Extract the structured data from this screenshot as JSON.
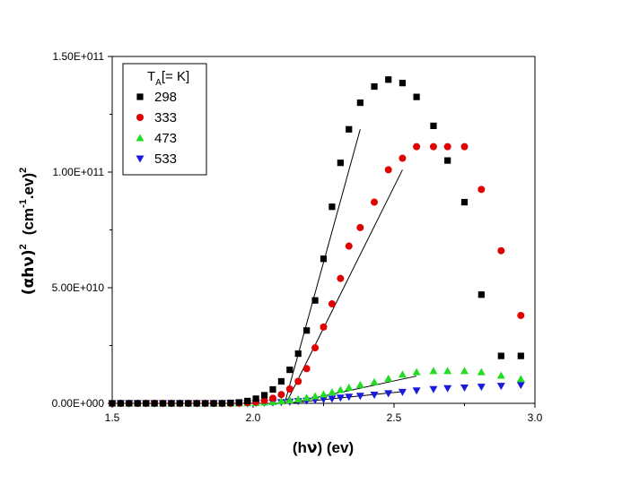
{
  "chart_data": {
    "type": "scatter",
    "title": "",
    "xlabel_parts": {
      "open": "(h",
      "nu": "ν",
      "close": ") (ev)"
    },
    "ylabel_parts": {
      "alpha": "(αhν)",
      "sup2": "2",
      "unit": "(cm",
      "supm1": "-1",
      "unit2": ".ev)",
      "sup2b": "2"
    },
    "xlim": [
      1.5,
      3.0
    ],
    "ylim": [
      0,
      150000000000.0
    ],
    "xticks": [
      1.5,
      2.0,
      2.5,
      3.0
    ],
    "xtick_labels": [
      "1.5",
      "2.0",
      "2.5",
      "3.0"
    ],
    "yticks": [
      0,
      50000000000.0,
      100000000000.0,
      150000000000.0
    ],
    "ytick_labels": [
      "0.00E+000",
      "5.00E+010",
      "1.00E+011",
      "1.50E+011"
    ],
    "legend": {
      "title_T": "T",
      "title_A": "A",
      "title_rest": "[= K]",
      "position": "top-left"
    },
    "series": [
      {
        "name": "298",
        "marker": "square",
        "color": "#000000",
        "x": [
          1.5,
          1.53,
          1.56,
          1.59,
          1.62,
          1.65,
          1.68,
          1.71,
          1.74,
          1.77,
          1.8,
          1.83,
          1.86,
          1.89,
          1.92,
          1.95,
          1.98,
          2.01,
          2.04,
          2.07,
          2.1,
          2.13,
          2.16,
          2.19,
          2.22,
          2.25,
          2.28,
          2.31,
          2.34,
          2.38,
          2.43,
          2.48,
          2.53,
          2.58,
          2.64,
          2.69,
          2.75,
          2.81,
          2.88,
          2.95
        ],
        "y": [
          0,
          0,
          0,
          0,
          0,
          0,
          0,
          0,
          0,
          0,
          0,
          0,
          0,
          0,
          200000000.0,
          400000000.0,
          1000000000.0,
          2000000000.0,
          3500000000.0,
          6000000000.0,
          9500000000.0,
          14500000000.0,
          21500000000.0,
          31500000000.0,
          44500000000.0,
          62500000000.0,
          85000000000.0,
          104000000000.0,
          118500000000.0,
          130000000000.0,
          137000000000.0,
          140000000000.0,
          138500000000.0,
          132500000000.0,
          120000000000.0,
          105000000000.0,
          87000000000.0,
          47000000000.0,
          20500000000.0,
          20500000000.0
        ]
      },
      {
        "name": "333",
        "marker": "circle",
        "color": "#e00000",
        "x": [
          1.5,
          1.53,
          1.56,
          1.59,
          1.62,
          1.65,
          1.68,
          1.71,
          1.74,
          1.77,
          1.8,
          1.83,
          1.86,
          1.89,
          1.92,
          1.95,
          1.98,
          2.01,
          2.04,
          2.07,
          2.1,
          2.13,
          2.16,
          2.19,
          2.22,
          2.25,
          2.28,
          2.31,
          2.34,
          2.38,
          2.43,
          2.48,
          2.53,
          2.58,
          2.64,
          2.69,
          2.75,
          2.81,
          2.88,
          2.95
        ],
        "y": [
          0,
          0,
          0,
          0,
          0,
          0,
          0,
          0,
          0,
          0,
          0,
          0,
          0,
          0,
          0,
          100000000.0,
          300000000.0,
          600000000.0,
          1200000000.0,
          2200000000.0,
          3800000000.0,
          6200000000.0,
          9500000000.0,
          15000000000.0,
          24000000000.0,
          33000000000.0,
          43000000000.0,
          54000000000.0,
          68000000000.0,
          76000000000.0,
          87000000000.0,
          101000000000.0,
          106000000000.0,
          111000000000.0,
          111000000000.0,
          111000000000.0,
          111000000000.0,
          92500000000.0,
          66000000000.0,
          38000000000.0
        ]
      },
      {
        "name": "473",
        "marker": "triangle-up",
        "color": "#22dd22",
        "x": [
          1.5,
          1.53,
          1.56,
          1.59,
          1.62,
          1.65,
          1.68,
          1.71,
          1.74,
          1.77,
          1.8,
          1.83,
          1.86,
          1.89,
          1.92,
          1.95,
          1.98,
          2.01,
          2.04,
          2.07,
          2.1,
          2.13,
          2.16,
          2.19,
          2.22,
          2.25,
          2.28,
          2.31,
          2.34,
          2.38,
          2.43,
          2.48,
          2.53,
          2.58,
          2.64,
          2.69,
          2.75,
          2.81,
          2.88,
          2.95
        ],
        "y": [
          0,
          0,
          0,
          0,
          0,
          0,
          0,
          0,
          0,
          0,
          0,
          0,
          0,
          0,
          0,
          0,
          100000000.0,
          200000000.0,
          400000000.0,
          600000000.0,
          900000000.0,
          1300000000.0,
          1800000000.0,
          2400000000.0,
          3100000000.0,
          3900000000.0,
          4800000000.0,
          5800000000.0,
          6800000000.0,
          8000000000.0,
          9200000000.0,
          10700000000.0,
          12500000000.0,
          13500000000.0,
          14000000000.0,
          14000000000.0,
          14000000000.0,
          13500000000.0,
          12000000000.0,
          10500000000.0
        ]
      },
      {
        "name": "533",
        "marker": "triangle-down",
        "color": "#1a1adc",
        "x": [
          1.5,
          1.53,
          1.56,
          1.59,
          1.62,
          1.65,
          1.68,
          1.71,
          1.74,
          1.77,
          1.8,
          1.83,
          1.86,
          1.89,
          1.92,
          1.95,
          1.98,
          2.01,
          2.04,
          2.07,
          2.1,
          2.13,
          2.16,
          2.19,
          2.22,
          2.25,
          2.28,
          2.31,
          2.34,
          2.38,
          2.43,
          2.48,
          2.53,
          2.58,
          2.64,
          2.69,
          2.75,
          2.81,
          2.88,
          2.95
        ],
        "y": [
          0,
          0,
          0,
          0,
          0,
          0,
          0,
          0,
          0,
          0,
          0,
          0,
          0,
          0,
          0,
          0,
          0,
          100000000.0,
          200000000.0,
          300000000.0,
          500000000.0,
          700000000.0,
          900000000.0,
          1100000000.0,
          1400000000.0,
          1700000000.0,
          2000000000.0,
          2400000000.0,
          2800000000.0,
          3200000000.0,
          3700000000.0,
          4300000000.0,
          4900000000.0,
          5500000000.0,
          6100000000.0,
          6500000000.0,
          6800000000.0,
          7100000000.0,
          7500000000.0,
          7900000000.0
        ]
      }
    ],
    "fit_lines": [
      {
        "name": "fit-298",
        "x": [
          2.112,
          2.38
        ],
        "y": [
          0,
          118500000000.0
        ]
      },
      {
        "name": "fit-333",
        "x": [
          2.117,
          2.53
        ],
        "y": [
          0,
          101000000000.0
        ]
      },
      {
        "name": "fit-473",
        "x": [
          2.13,
          2.58
        ],
        "y": [
          0,
          11800000000.0
        ]
      },
      {
        "name": "fit-533",
        "x": [
          2.12,
          2.54
        ],
        "y": [
          0,
          5200000000.0
        ]
      }
    ]
  }
}
